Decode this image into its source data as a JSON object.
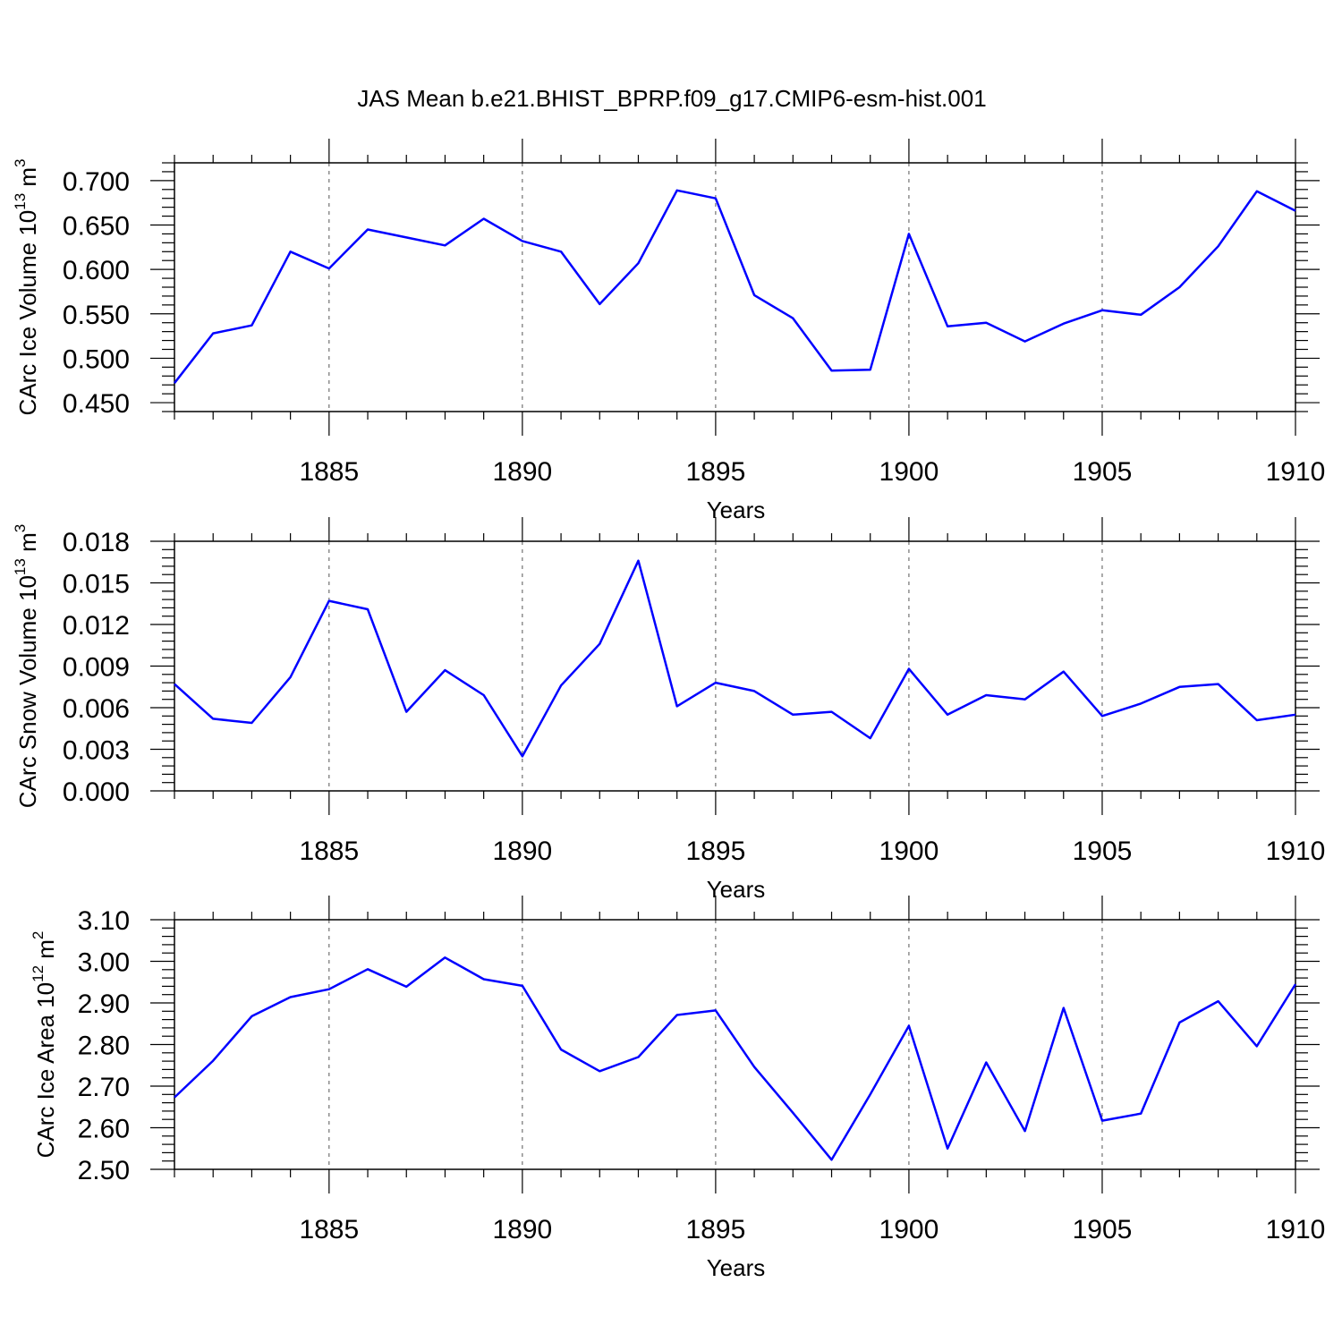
{
  "title": "JAS Mean b.e21.BHIST_BPRP.f09_g17.CMIP6-esm-hist.001",
  "line_color": "#0000ff",
  "chart_data": [
    {
      "type": "line",
      "ylabel_text": "CArc Ice Volume 10",
      "ylabel_exp": "13",
      "ylabel_unit": "m",
      "ylabel_unit_exp": "3",
      "xlabel": "Years",
      "xlim": [
        1881,
        1910
      ],
      "ylim": [
        0.44,
        0.72
      ],
      "yticks": [
        0.45,
        0.5,
        0.55,
        0.6,
        0.65,
        0.7
      ],
      "ytick_labels": [
        "0.450",
        "0.500",
        "0.550",
        "0.600",
        "0.650",
        "0.700"
      ],
      "xticks": [
        1885,
        1890,
        1895,
        1900,
        1905,
        1910
      ],
      "xtick_labels": [
        "1885",
        "1890",
        "1895",
        "1900",
        "1905",
        "1910"
      ],
      "x": [
        1881,
        1882,
        1883,
        1884,
        1885,
        1886,
        1887,
        1888,
        1889,
        1890,
        1891,
        1892,
        1893,
        1894,
        1895,
        1896,
        1897,
        1898,
        1899,
        1900,
        1901,
        1902,
        1903,
        1904,
        1905,
        1906,
        1907,
        1908,
        1909,
        1910
      ],
      "values": [
        0.472,
        0.528,
        0.537,
        0.62,
        0.601,
        0.645,
        0.636,
        0.627,
        0.657,
        0.632,
        0.62,
        0.561,
        0.607,
        0.689,
        0.68,
        0.571,
        0.545,
        0.486,
        0.487,
        0.64,
        0.536,
        0.54,
        0.519,
        0.539,
        0.554,
        0.549,
        0.58,
        0.626,
        0.688,
        0.666
      ]
    },
    {
      "type": "line",
      "ylabel_text": "CArc Snow Volume 10",
      "ylabel_exp": "13",
      "ylabel_unit": "m",
      "ylabel_unit_exp": "3",
      "xlabel": "Years",
      "xlim": [
        1881,
        1910
      ],
      "ylim": [
        0.0,
        0.018
      ],
      "yticks": [
        0.0,
        0.003,
        0.006,
        0.009,
        0.012,
        0.015,
        0.018
      ],
      "ytick_labels": [
        "0.000",
        "0.003",
        "0.006",
        "0.009",
        "0.012",
        "0.015",
        "0.018"
      ],
      "xticks": [
        1885,
        1890,
        1895,
        1900,
        1905,
        1910
      ],
      "xtick_labels": [
        "1885",
        "1890",
        "1895",
        "1900",
        "1905",
        "1910"
      ],
      "x": [
        1881,
        1882,
        1883,
        1884,
        1885,
        1886,
        1887,
        1888,
        1889,
        1890,
        1891,
        1892,
        1893,
        1894,
        1895,
        1896,
        1897,
        1898,
        1899,
        1900,
        1901,
        1902,
        1903,
        1904,
        1905,
        1906,
        1907,
        1908,
        1909,
        1910
      ],
      "values": [
        0.0077,
        0.0052,
        0.0049,
        0.0082,
        0.0137,
        0.0131,
        0.0057,
        0.0087,
        0.0069,
        0.0025,
        0.0076,
        0.0106,
        0.0166,
        0.0061,
        0.0078,
        0.0072,
        0.0055,
        0.0057,
        0.0038,
        0.0088,
        0.0055,
        0.0069,
        0.0066,
        0.0086,
        0.0054,
        0.0063,
        0.0075,
        0.0077,
        0.0051,
        0.0055
      ]
    },
    {
      "type": "line",
      "ylabel_text": "CArc Ice Area 10",
      "ylabel_exp": "12",
      "ylabel_unit": "m",
      "ylabel_unit_exp": "2",
      "xlabel": "Years",
      "xlim": [
        1881,
        1910
      ],
      "ylim": [
        2.5,
        3.1
      ],
      "yticks": [
        2.5,
        2.6,
        2.7,
        2.8,
        2.9,
        3.0,
        3.1
      ],
      "ytick_labels": [
        "2.50",
        "2.60",
        "2.70",
        "2.80",
        "2.90",
        "3.00",
        "3.10"
      ],
      "xticks": [
        1885,
        1890,
        1895,
        1900,
        1905,
        1910
      ],
      "xtick_labels": [
        "1885",
        "1890",
        "1895",
        "1900",
        "1905",
        "1910"
      ],
      "x": [
        1881,
        1882,
        1883,
        1884,
        1885,
        1886,
        1887,
        1888,
        1889,
        1890,
        1891,
        1892,
        1893,
        1894,
        1895,
        1896,
        1897,
        1898,
        1899,
        1900,
        1901,
        1902,
        1903,
        1904,
        1905,
        1906,
        1907,
        1908,
        1909,
        1910
      ],
      "values": [
        2.673,
        2.761,
        2.868,
        2.914,
        2.933,
        2.981,
        2.939,
        3.009,
        2.957,
        2.941,
        2.788,
        2.736,
        2.77,
        2.871,
        2.882,
        2.746,
        2.636,
        2.523,
        2.68,
        2.845,
        2.55,
        2.757,
        2.592,
        2.888,
        2.617,
        2.634,
        2.853,
        2.904,
        2.796,
        2.945
      ]
    }
  ]
}
